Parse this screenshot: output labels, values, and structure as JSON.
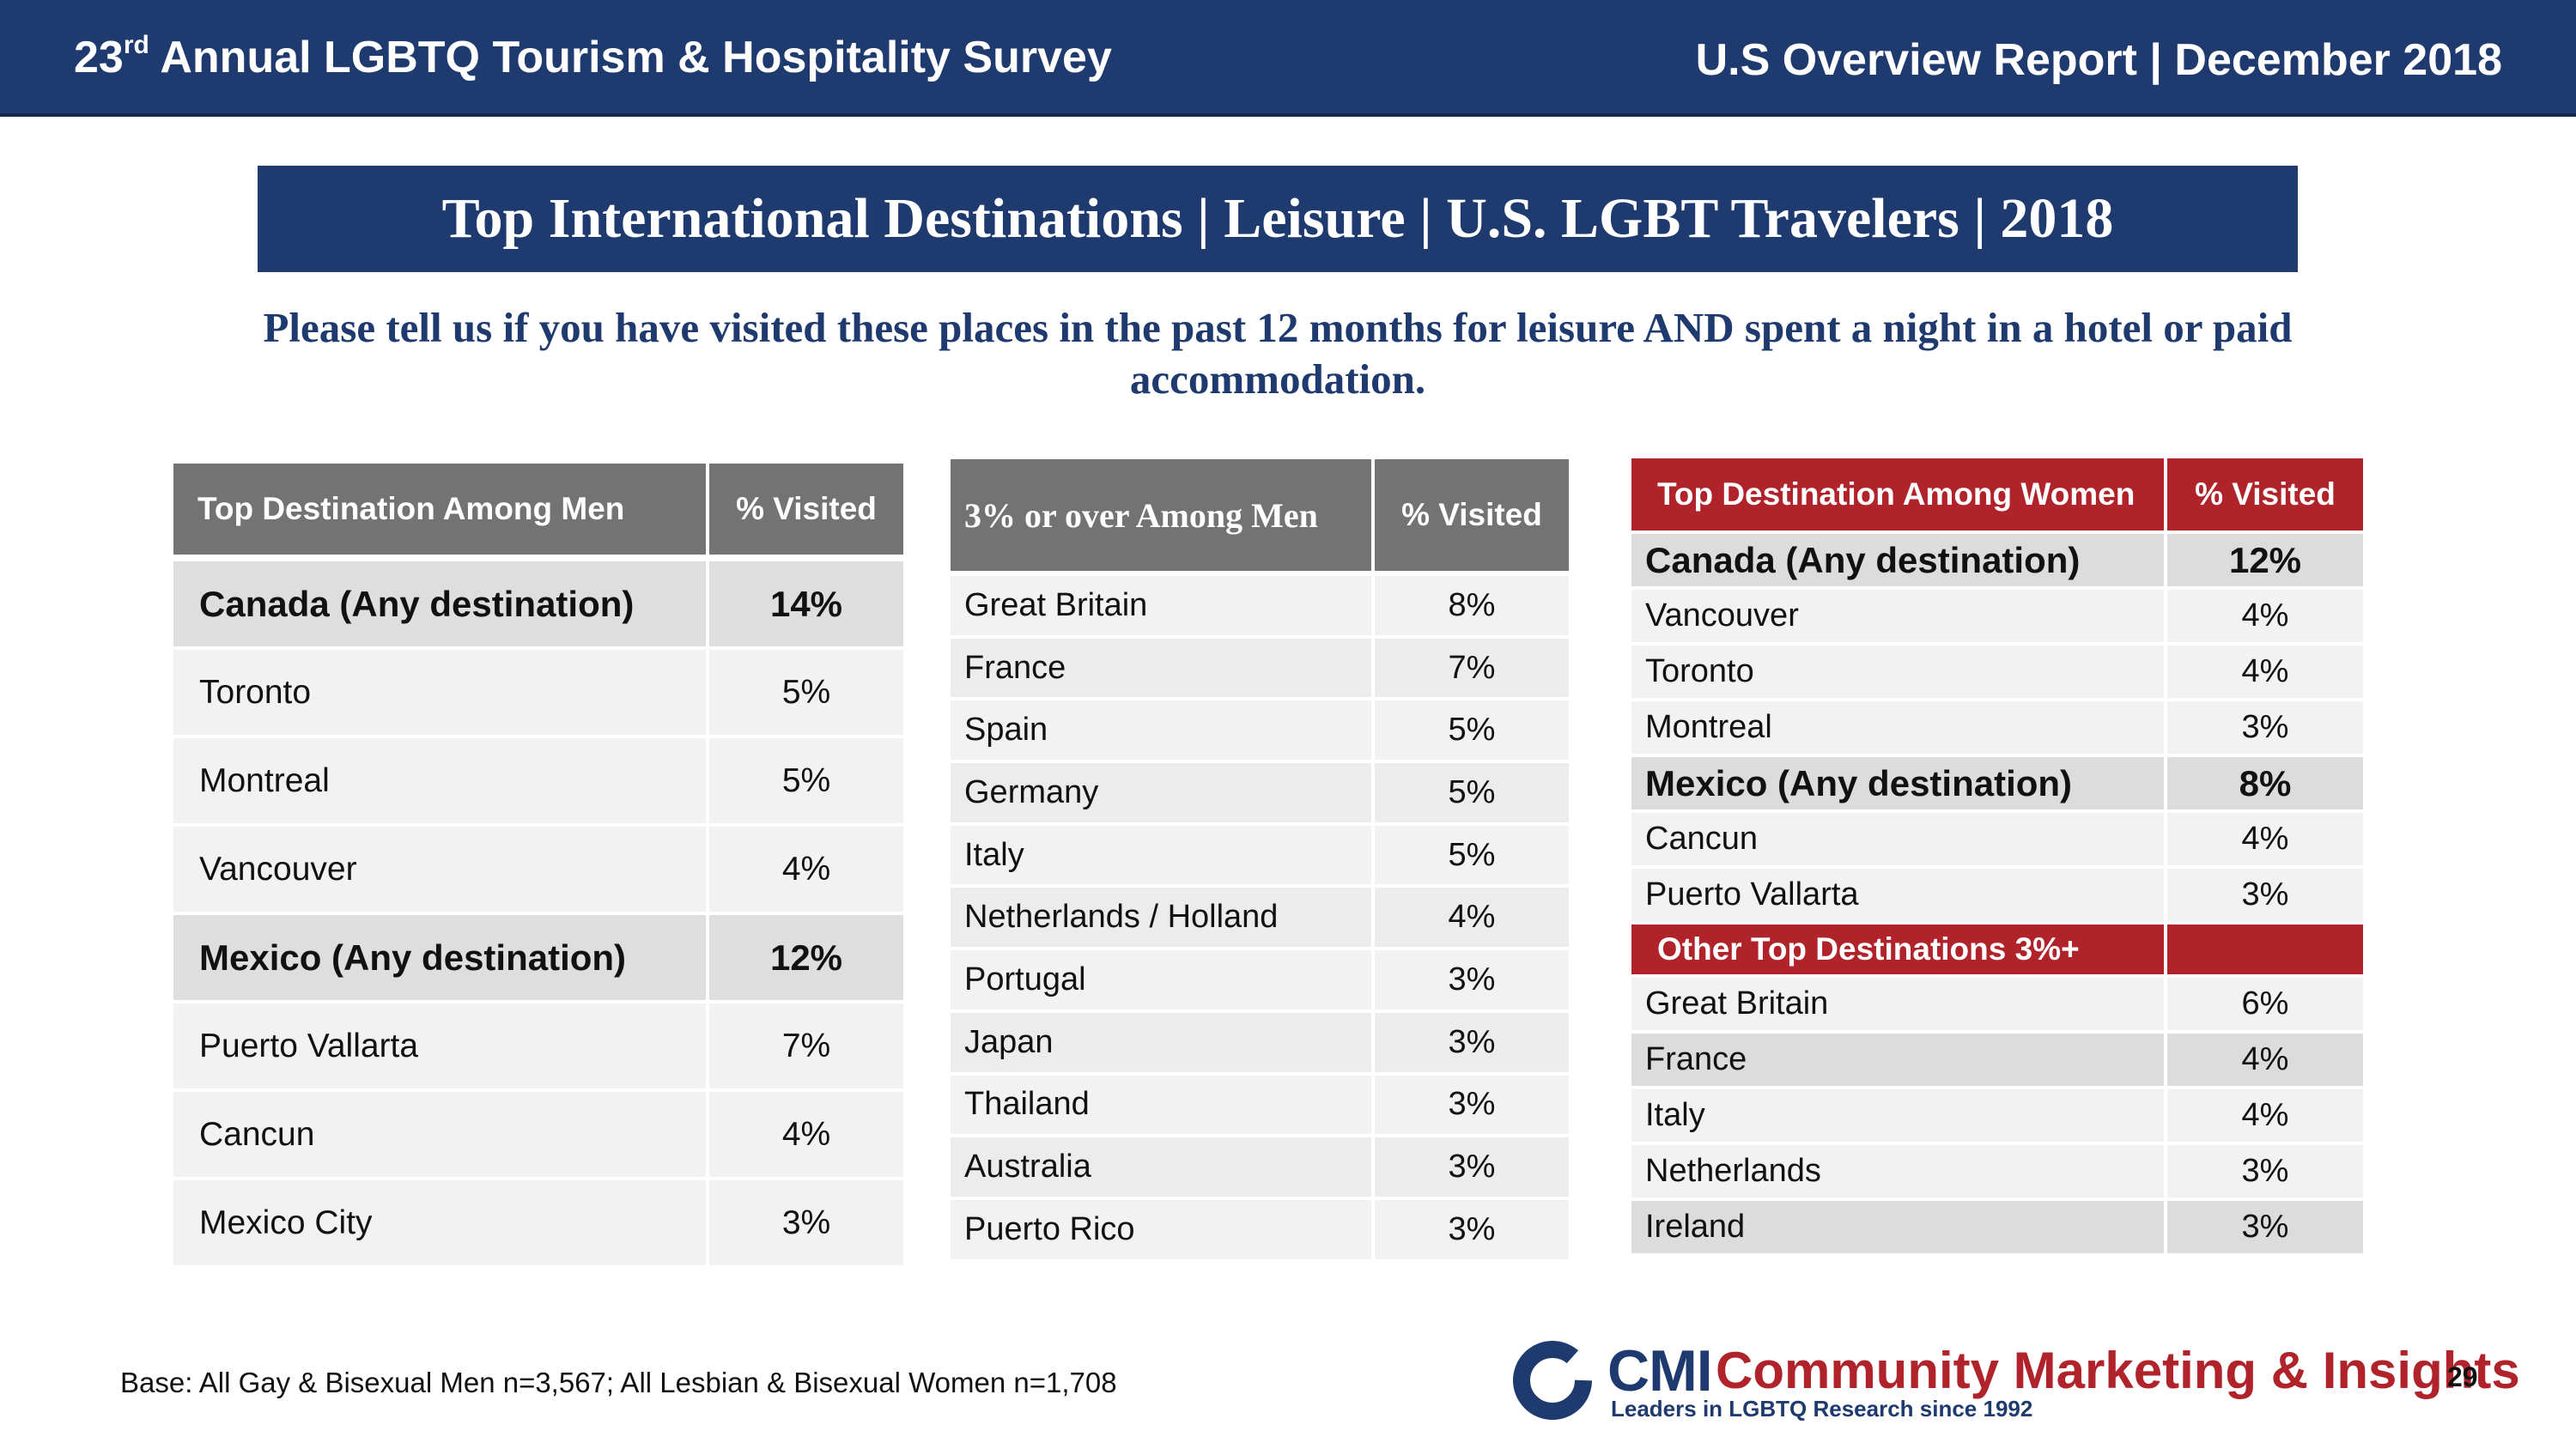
{
  "header": {
    "left_prefix": "23",
    "left_sup": "rd",
    "left_rest": " Annual LGBTQ Tourism & Hospitality Survey",
    "right": "U.S Overview Report | December 2018"
  },
  "title": "Top International Destinations | Leisure | U.S. LGBT Travelers | 2018",
  "question": "Please tell us if you have visited these places in the past 12 months for leisure AND spent a night in a hotel or paid accommodation.",
  "men_top": {
    "headers": [
      "Top Destination Among Men",
      "% Visited"
    ],
    "rows": [
      {
        "name": "Canada (Any destination)",
        "value": "14%"
      },
      {
        "name": "Toronto",
        "value": "5%"
      },
      {
        "name": "Montreal",
        "value": "5%"
      },
      {
        "name": "Vancouver",
        "value": "4%"
      },
      {
        "name": "Mexico (Any destination)",
        "value": "12%"
      },
      {
        "name": "Puerto Vallarta",
        "value": "7%"
      },
      {
        "name": "Cancun",
        "value": "4%"
      },
      {
        "name": "Mexico City",
        "value": "3%"
      }
    ]
  },
  "men_over3": {
    "headers": [
      "3% or over Among Men",
      "% Visited"
    ],
    "rows": [
      {
        "name": "Great Britain",
        "value": "8%"
      },
      {
        "name": "France",
        "value": "7%"
      },
      {
        "name": "Spain",
        "value": "5%"
      },
      {
        "name": "Germany",
        "value": "5%"
      },
      {
        "name": "Italy",
        "value": "5%"
      },
      {
        "name": "Netherlands / Holland",
        "value": "4%"
      },
      {
        "name": "Portugal",
        "value": "3%"
      },
      {
        "name": "Japan",
        "value": "3%"
      },
      {
        "name": "Thailand",
        "value": "3%"
      },
      {
        "name": "Australia",
        "value": "3%"
      },
      {
        "name": "Puerto Rico",
        "value": "3%"
      }
    ]
  },
  "women_top": {
    "headers": [
      "Top Destination Among Women",
      "% Visited"
    ],
    "rows": [
      {
        "name": "Canada (Any destination)",
        "value": "12%"
      },
      {
        "name": "Vancouver",
        "value": "4%"
      },
      {
        "name": "Toronto",
        "value": "4%"
      },
      {
        "name": "Montreal",
        "value": "3%"
      },
      {
        "name": "Mexico (Any destination)",
        "value": "8%"
      },
      {
        "name": "Cancun",
        "value": "4%"
      },
      {
        "name": "Puerto Vallarta",
        "value": "3%"
      }
    ],
    "other_header": "Other Top Destinations 3%+",
    "other_rows": [
      {
        "name": "Great Britain",
        "value": "6%"
      },
      {
        "name": "France",
        "value": "4%"
      },
      {
        "name": "Italy",
        "value": "4%"
      },
      {
        "name": "Netherlands",
        "value": "3%"
      },
      {
        "name": "Ireland",
        "value": "3%"
      }
    ]
  },
  "footer": {
    "base": "Base: All Gay & Bisexual Men n=3,567; All Lesbian & Bisexual Women n=1,708",
    "logo_abbr": "CMI",
    "logo_name": "Community Marketing & Insights",
    "logo_tagline": "Leaders in LGBTQ Research since 1992",
    "page_number": "29"
  },
  "colors": {
    "navy": "#1f3a6e",
    "red": "#b0232b",
    "gray_header": "#737373"
  }
}
